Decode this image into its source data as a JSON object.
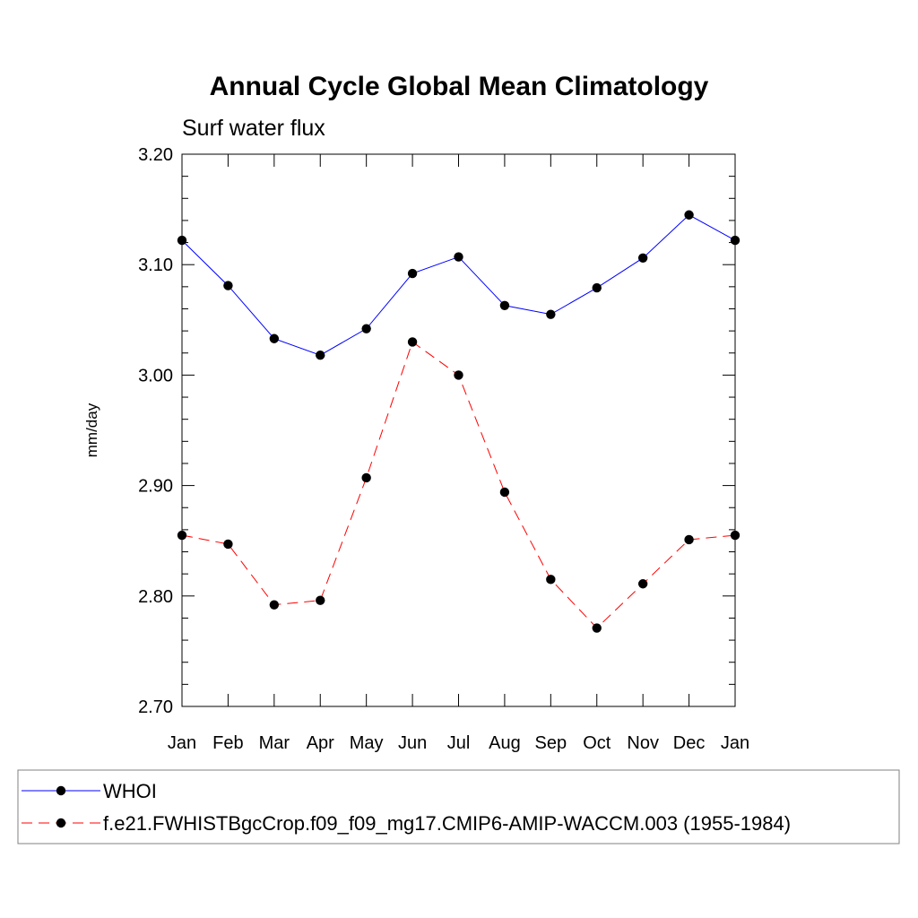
{
  "chart_data": {
    "type": "line",
    "title": "Annual Cycle Global Mean Climatology",
    "subtitle": "Surf water flux",
    "xlabel": "",
    "ylabel": "mm/day",
    "categories": [
      "Jan",
      "Feb",
      "Mar",
      "Apr",
      "May",
      "Jun",
      "Jul",
      "Aug",
      "Sep",
      "Oct",
      "Nov",
      "Dec",
      "Jan"
    ],
    "ylim": [
      2.7,
      3.2
    ],
    "yticks": [
      2.7,
      2.8,
      2.9,
      3.0,
      3.1,
      3.2
    ],
    "ytick_labels": [
      "2.70",
      "2.80",
      "2.90",
      "3.00",
      "3.10",
      "3.20"
    ],
    "legend_position": "bottom",
    "series": [
      {
        "name": "WHOI",
        "color": "#0000ff",
        "line_style": "solid",
        "marker": "filled-circle",
        "values": [
          3.122,
          3.081,
          3.033,
          3.018,
          3.042,
          3.092,
          3.107,
          3.063,
          3.055,
          3.079,
          3.106,
          3.145,
          3.122
        ]
      },
      {
        "name": "f.e21.FWHISTBgcCrop.f09_f09_mg17.CMIP6-AMIP-WACCM.003 (1955-1984)",
        "color": "#ff0000",
        "line_style": "dashed",
        "marker": "filled-circle",
        "values": [
          2.855,
          2.847,
          2.792,
          2.796,
          2.907,
          3.03,
          3.0,
          2.894,
          2.815,
          2.771,
          2.811,
          2.851,
          2.855
        ]
      }
    ]
  }
}
